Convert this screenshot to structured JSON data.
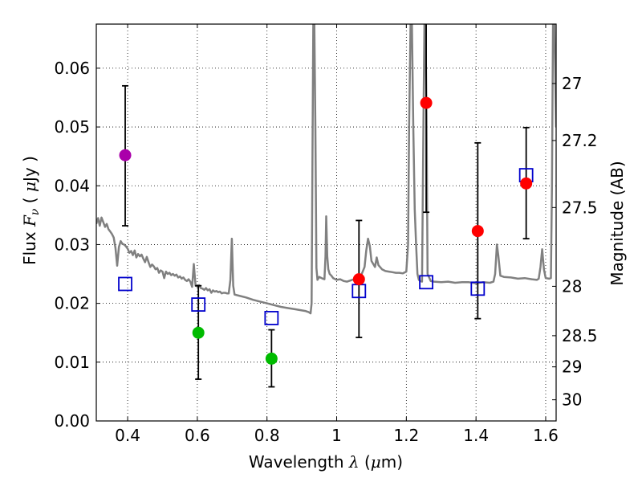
{
  "chart_data": {
    "type": "scatter",
    "title": "",
    "xlabel": "Wavelength",
    "xlabel_symbol": "λ",
    "xlabel_unit_open": "(",
    "xlabel_unit_mu": "μ",
    "xlabel_unit_rest": "m)",
    "ylabel_prefix": "Flux",
    "ylabel_symbol_F": "F",
    "ylabel_symbol_sub": "ν",
    "ylabel_unit_open": "(",
    "ylabel_unit_mu": "μ",
    "ylabel_unit_rest": "Jy )",
    "y2label": "Magnitude (AB)",
    "xlim": [
      0.31,
      1.63
    ],
    "ylim": [
      0.0,
      0.0675
    ],
    "grid": true,
    "x_ticks": [
      {
        "value": 0.4,
        "label": "0.4"
      },
      {
        "value": 0.6,
        "label": "0.6"
      },
      {
        "value": 0.8,
        "label": "0.8"
      },
      {
        "value": 1.0,
        "label": "1"
      },
      {
        "value": 1.2,
        "label": "1.2"
      },
      {
        "value": 1.4,
        "label": "1.4"
      },
      {
        "value": 1.6,
        "label": "1.6"
      }
    ],
    "y_ticks": [
      {
        "value": 0.0,
        "label": "0.00"
      },
      {
        "value": 0.01,
        "label": "0.01"
      },
      {
        "value": 0.02,
        "label": "0.02"
      },
      {
        "value": 0.03,
        "label": "0.03"
      },
      {
        "value": 0.04,
        "label": "0.04"
      },
      {
        "value": 0.05,
        "label": "0.05"
      },
      {
        "value": 0.06,
        "label": "0.06"
      }
    ],
    "y2_ticks": [
      {
        "flux": 0.0574,
        "label": "27"
      },
      {
        "flux": 0.0477,
        "label": "27.2"
      },
      {
        "flux": 0.0363,
        "label": "27.5"
      },
      {
        "flux": 0.0229,
        "label": "28"
      },
      {
        "flux": 0.0145,
        "label": "28.5"
      },
      {
        "flux": 0.0092,
        "label": "29"
      },
      {
        "flux": 0.0036,
        "label": "30"
      }
    ],
    "observed_points": [
      {
        "x": 0.393,
        "y": 0.0452,
        "yerr_low": 0.0332,
        "yerr_high": 0.057,
        "color": "#aa00aa"
      },
      {
        "x": 0.603,
        "y": 0.015,
        "yerr_low": 0.0071,
        "yerr_high": 0.023,
        "color": "#00bb00"
      },
      {
        "x": 0.813,
        "y": 0.0106,
        "yerr_low": 0.0058,
        "yerr_high": 0.0155,
        "color": "#00bb00"
      },
      {
        "x": 1.064,
        "y": 0.0241,
        "yerr_low": 0.0142,
        "yerr_high": 0.0341,
        "color": "#ff0000"
      },
      {
        "x": 1.257,
        "y": 0.0541,
        "yerr_low": 0.0355,
        "yerr_high": 0.068,
        "color": "#ff0000"
      },
      {
        "x": 1.405,
        "y": 0.0323,
        "yerr_low": 0.0174,
        "yerr_high": 0.0473,
        "color": "#ff0000"
      },
      {
        "x": 1.544,
        "y": 0.0404,
        "yerr_low": 0.031,
        "yerr_high": 0.0499,
        "color": "#ff0000"
      }
    ],
    "model_points": [
      {
        "x": 0.393,
        "y": 0.0233
      },
      {
        "x": 0.603,
        "y": 0.0198
      },
      {
        "x": 0.813,
        "y": 0.0175
      },
      {
        "x": 1.064,
        "y": 0.0221
      },
      {
        "x": 1.257,
        "y": 0.0236
      },
      {
        "x": 1.405,
        "y": 0.0225
      },
      {
        "x": 1.544,
        "y": 0.0418
      }
    ],
    "model_spectrum": [
      [
        0.31,
        0.0335
      ],
      [
        0.315,
        0.0345
      ],
      [
        0.32,
        0.0332
      ],
      [
        0.325,
        0.0346
      ],
      [
        0.33,
        0.0338
      ],
      [
        0.335,
        0.033
      ],
      [
        0.34,
        0.0335
      ],
      [
        0.345,
        0.0326
      ],
      [
        0.35,
        0.0322
      ],
      [
        0.355,
        0.0318
      ],
      [
        0.36,
        0.0312
      ],
      [
        0.365,
        0.0294
      ],
      [
        0.37,
        0.0264
      ],
      [
        0.375,
        0.0296
      ],
      [
        0.38,
        0.0306
      ],
      [
        0.385,
        0.0301
      ],
      [
        0.39,
        0.03
      ],
      [
        0.395,
        0.0297
      ],
      [
        0.4,
        0.0293
      ],
      [
        0.405,
        0.0286
      ],
      [
        0.41,
        0.0289
      ],
      [
        0.415,
        0.0282
      ],
      [
        0.42,
        0.029
      ],
      [
        0.425,
        0.0278
      ],
      [
        0.43,
        0.0284
      ],
      [
        0.435,
        0.028
      ],
      [
        0.44,
        0.0283
      ],
      [
        0.445,
        0.0276
      ],
      [
        0.45,
        0.027
      ],
      [
        0.455,
        0.0279
      ],
      [
        0.46,
        0.027
      ],
      [
        0.465,
        0.0262
      ],
      [
        0.47,
        0.0266
      ],
      [
        0.475,
        0.0263
      ],
      [
        0.48,
        0.0258
      ],
      [
        0.485,
        0.026
      ],
      [
        0.49,
        0.0252
      ],
      [
        0.495,
        0.0256
      ],
      [
        0.5,
        0.0254
      ],
      [
        0.505,
        0.0243
      ],
      [
        0.51,
        0.0254
      ],
      [
        0.515,
        0.025
      ],
      [
        0.52,
        0.0252
      ],
      [
        0.525,
        0.0248
      ],
      [
        0.53,
        0.025
      ],
      [
        0.535,
        0.0247
      ],
      [
        0.54,
        0.0249
      ],
      [
        0.545,
        0.0244
      ],
      [
        0.55,
        0.0246
      ],
      [
        0.555,
        0.0242
      ],
      [
        0.56,
        0.0244
      ],
      [
        0.565,
        0.024
      ],
      [
        0.57,
        0.0238
      ],
      [
        0.575,
        0.0241
      ],
      [
        0.58,
        0.0237
      ],
      [
        0.585,
        0.0228
      ],
      [
        0.59,
        0.0267
      ],
      [
        0.595,
        0.023
      ],
      [
        0.6,
        0.0229
      ],
      [
        0.605,
        0.0231
      ],
      [
        0.61,
        0.0226
      ],
      [
        0.615,
        0.0225
      ],
      [
        0.62,
        0.0223
      ],
      [
        0.625,
        0.0226
      ],
      [
        0.63,
        0.0222
      ],
      [
        0.635,
        0.0224
      ],
      [
        0.64,
        0.0218
      ],
      [
        0.645,
        0.0222
      ],
      [
        0.65,
        0.022
      ],
      [
        0.655,
        0.0221
      ],
      [
        0.66,
        0.0219
      ],
      [
        0.665,
        0.022
      ],
      [
        0.67,
        0.0217
      ],
      [
        0.675,
        0.0218
      ],
      [
        0.68,
        0.0218
      ],
      [
        0.685,
        0.0217
      ],
      [
        0.69,
        0.0217
      ],
      [
        0.695,
        0.024
      ],
      [
        0.699,
        0.031
      ],
      [
        0.703,
        0.023
      ],
      [
        0.707,
        0.0215
      ],
      [
        0.72,
        0.0213
      ],
      [
        0.74,
        0.021
      ],
      [
        0.76,
        0.0206
      ],
      [
        0.78,
        0.0203
      ],
      [
        0.8,
        0.02
      ],
      [
        0.82,
        0.0197
      ],
      [
        0.84,
        0.0194
      ],
      [
        0.86,
        0.0192
      ],
      [
        0.88,
        0.019
      ],
      [
        0.9,
        0.0188
      ],
      [
        0.91,
        0.0187
      ],
      [
        0.92,
        0.0185
      ],
      [
        0.925,
        0.0183
      ],
      [
        0.928,
        0.02
      ],
      [
        0.931,
        0.05
      ],
      [
        0.933,
        0.0675
      ],
      [
        0.936,
        0.0675
      ],
      [
        0.939,
        0.05
      ],
      [
        0.942,
        0.026
      ],
      [
        0.945,
        0.024
      ],
      [
        0.95,
        0.0245
      ],
      [
        0.96,
        0.0242
      ],
      [
        0.965,
        0.0241
      ],
      [
        0.968,
        0.028
      ],
      [
        0.97,
        0.0348
      ],
      [
        0.973,
        0.028
      ],
      [
        0.976,
        0.0258
      ],
      [
        0.98,
        0.025
      ],
      [
        0.985,
        0.0247
      ],
      [
        0.99,
        0.0243
      ],
      [
        1.0,
        0.024
      ],
      [
        1.01,
        0.0241
      ],
      [
        1.02,
        0.0238
      ],
      [
        1.03,
        0.0237
      ],
      [
        1.04,
        0.0239
      ],
      [
        1.05,
        0.0241
      ],
      [
        1.06,
        0.0243
      ],
      [
        1.07,
        0.0247
      ],
      [
        1.08,
        0.0262
      ],
      [
        1.085,
        0.029
      ],
      [
        1.09,
        0.031
      ],
      [
        1.095,
        0.0298
      ],
      [
        1.1,
        0.0272
      ],
      [
        1.11,
        0.0262
      ],
      [
        1.115,
        0.0278
      ],
      [
        1.12,
        0.0265
      ],
      [
        1.13,
        0.0258
      ],
      [
        1.14,
        0.0255
      ],
      [
        1.15,
        0.0254
      ],
      [
        1.16,
        0.0253
      ],
      [
        1.17,
        0.0252
      ],
      [
        1.18,
        0.0252
      ],
      [
        1.19,
        0.0251
      ],
      [
        1.2,
        0.0254
      ],
      [
        1.205,
        0.03
      ],
      [
        1.208,
        0.05
      ],
      [
        1.212,
        0.0675
      ],
      [
        1.216,
        0.0675
      ],
      [
        1.22,
        0.05
      ],
      [
        1.224,
        0.036
      ],
      [
        1.228,
        0.03
      ],
      [
        1.232,
        0.025
      ],
      [
        1.236,
        0.024
      ],
      [
        1.24,
        0.0238
      ],
      [
        1.245,
        0.0237
      ],
      [
        1.249,
        0.05
      ],
      [
        1.252,
        0.0675
      ],
      [
        1.255,
        0.0675
      ],
      [
        1.258,
        0.052
      ],
      [
        1.261,
        0.025
      ],
      [
        1.27,
        0.0238
      ],
      [
        1.28,
        0.0237
      ],
      [
        1.3,
        0.0236
      ],
      [
        1.32,
        0.0237
      ],
      [
        1.34,
        0.0235
      ],
      [
        1.36,
        0.0236
      ],
      [
        1.38,
        0.0236
      ],
      [
        1.4,
        0.0234
      ],
      [
        1.42,
        0.0236
      ],
      [
        1.44,
        0.0235
      ],
      [
        1.45,
        0.0237
      ],
      [
        1.455,
        0.025
      ],
      [
        1.46,
        0.03
      ],
      [
        1.464,
        0.0282
      ],
      [
        1.47,
        0.0247
      ],
      [
        1.48,
        0.0245
      ],
      [
        1.5,
        0.0244
      ],
      [
        1.52,
        0.0242
      ],
      [
        1.54,
        0.0243
      ],
      [
        1.56,
        0.0241
      ],
      [
        1.575,
        0.024
      ],
      [
        1.58,
        0.0242
      ],
      [
        1.585,
        0.0262
      ],
      [
        1.59,
        0.0292
      ],
      [
        1.595,
        0.0258
      ],
      [
        1.6,
        0.0243
      ],
      [
        1.61,
        0.0242
      ],
      [
        1.615,
        0.0243
      ],
      [
        1.618,
        0.04
      ],
      [
        1.621,
        0.0675
      ],
      [
        1.625,
        0.0675
      ],
      [
        1.63,
        0.05
      ]
    ],
    "colors": {
      "spectrum": "#808080",
      "model_marker": "#0000cc",
      "errorbar": "#000000",
      "grid": "#000000"
    }
  }
}
